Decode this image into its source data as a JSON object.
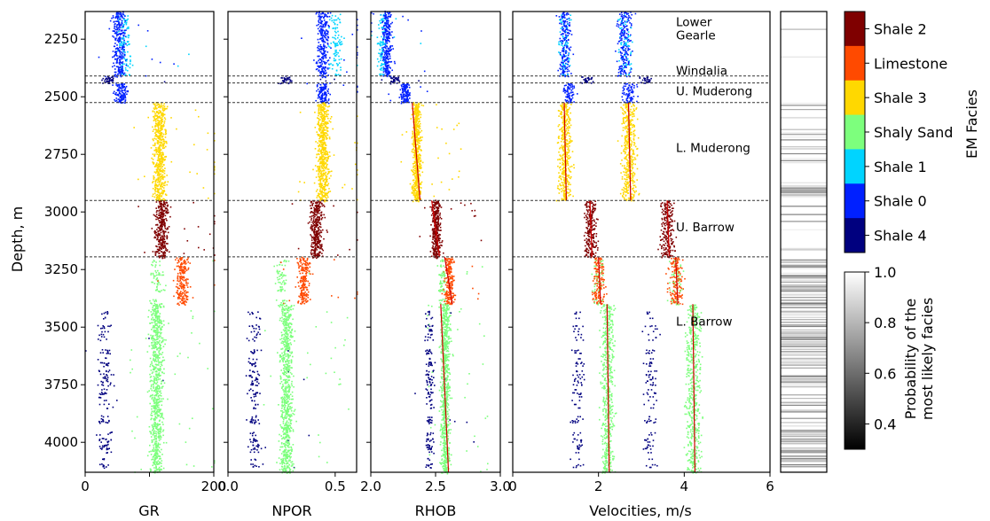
{
  "chart_data": {
    "type": "scatter",
    "y_axis": {
      "label": "Depth, m",
      "range": [
        2130,
        4130
      ],
      "ticks": [
        2250,
        2500,
        2750,
        3000,
        3250,
        3500,
        3750,
        4000
      ],
      "inverted": true
    },
    "tracks": [
      {
        "name": "GR",
        "xlabel": "GR",
        "xlim": [
          0,
          200
        ],
        "xticks": [
          0,
          100,
          200
        ],
        "xticklabels": [
          "0",
          "",
          "200"
        ]
      },
      {
        "name": "NPOR",
        "xlabel": "NPOR",
        "xlim": [
          0,
          0.6
        ],
        "xticks": [
          0,
          0.5
        ],
        "xticklabels": [
          "0.0",
          "0.5"
        ]
      },
      {
        "name": "RHOB",
        "xlabel": "RHOB",
        "xlim": [
          2.0,
          3.0
        ],
        "xticks": [
          2.0,
          2.5,
          3.0
        ],
        "xticklabels": [
          "2.0",
          "2.5",
          "3.0"
        ]
      },
      {
        "name": "Velocities",
        "xlabel": "Velocities, m/s",
        "xlim": [
          0,
          6
        ],
        "xticks": [
          0,
          2,
          4,
          6
        ],
        "xticklabels": [
          "0",
          "2",
          "4",
          "6"
        ]
      }
    ],
    "facies": [
      {
        "name": "Shale 2",
        "color": "#7f0000"
      },
      {
        "name": "Limestone",
        "color": "#ff4a00"
      },
      {
        "name": "Shale 3",
        "color": "#ffd800"
      },
      {
        "name": "Shaly Sand",
        "color": "#7dff7d"
      },
      {
        "name": "Shale 1",
        "color": "#00d4ff"
      },
      {
        "name": "Shale 0",
        "color": "#0020ff"
      },
      {
        "name": "Shale 4",
        "color": "#00007f"
      }
    ],
    "facies_colorbar_label": "EM Facies",
    "probability_colorbar": {
      "label_line1": "Probability of the",
      "label_line2": "most likely facies",
      "range": [
        0.3,
        1.0
      ],
      "ticks": [
        0.4,
        0.6,
        0.8,
        1.0
      ],
      "ticklabels": [
        "0.4",
        "0.6",
        "0.8",
        "1.0"
      ]
    },
    "boundaries": [
      2410,
      2440,
      2525,
      2950,
      3195
    ],
    "formations": [
      {
        "label": "Lower",
        "depth": 2175
      },
      {
        "label": "Gearle",
        "depth": 2232
      },
      {
        "label": "Windalia",
        "depth": 2385
      },
      {
        "label": "U. Muderong",
        "depth": 2475
      },
      {
        "label": "L. Muderong",
        "depth": 2720
      },
      {
        "label": "U. Barrow",
        "depth": 3065
      },
      {
        "label": "L. Barrow",
        "depth": 3475
      }
    ],
    "intervals": [
      {
        "top": 2130,
        "base": 2410,
        "facies": "Shale 0",
        "alt": "Shale 1",
        "gr": 52,
        "npor": 0.44,
        "rhob": 2.12,
        "vp": 1.2,
        "vs": 2.6
      },
      {
        "top": 2410,
        "base": 2440,
        "facies": "Shale 4",
        "gr": 35,
        "npor": 0.27,
        "rhob": 2.18,
        "vp": 1.7,
        "vs": 3.1
      },
      {
        "top": 2440,
        "base": 2525,
        "facies": "Shale 0",
        "gr": 55,
        "npor": 0.44,
        "rhob": 2.26,
        "vp": 1.3,
        "vs": 2.7
      },
      {
        "top": 2525,
        "base": 2950,
        "facies": "Shale 3",
        "gr": 115,
        "npor": 0.44,
        "rhob": 2.35,
        "vp": 1.2,
        "vs": 2.7
      },
      {
        "top": 2950,
        "base": 3195,
        "facies": "Shale 2",
        "gr": 118,
        "npor": 0.41,
        "rhob": 2.5,
        "vp": 1.8,
        "vs": 3.6
      },
      {
        "top": 3195,
        "base": 3400,
        "facies": "Limestone",
        "alt": "Shaly Sand",
        "gr": 150,
        "npor": 0.35,
        "rhob": 2.6,
        "vp": 2.0,
        "vs": 3.8
      },
      {
        "top": 3400,
        "base": 4130,
        "facies": "Shaly Sand",
        "alt": "Shale 4",
        "gr": 110,
        "npor": 0.27,
        "rhob": 2.57,
        "vp": 2.2,
        "vs": 4.2
      }
    ]
  }
}
